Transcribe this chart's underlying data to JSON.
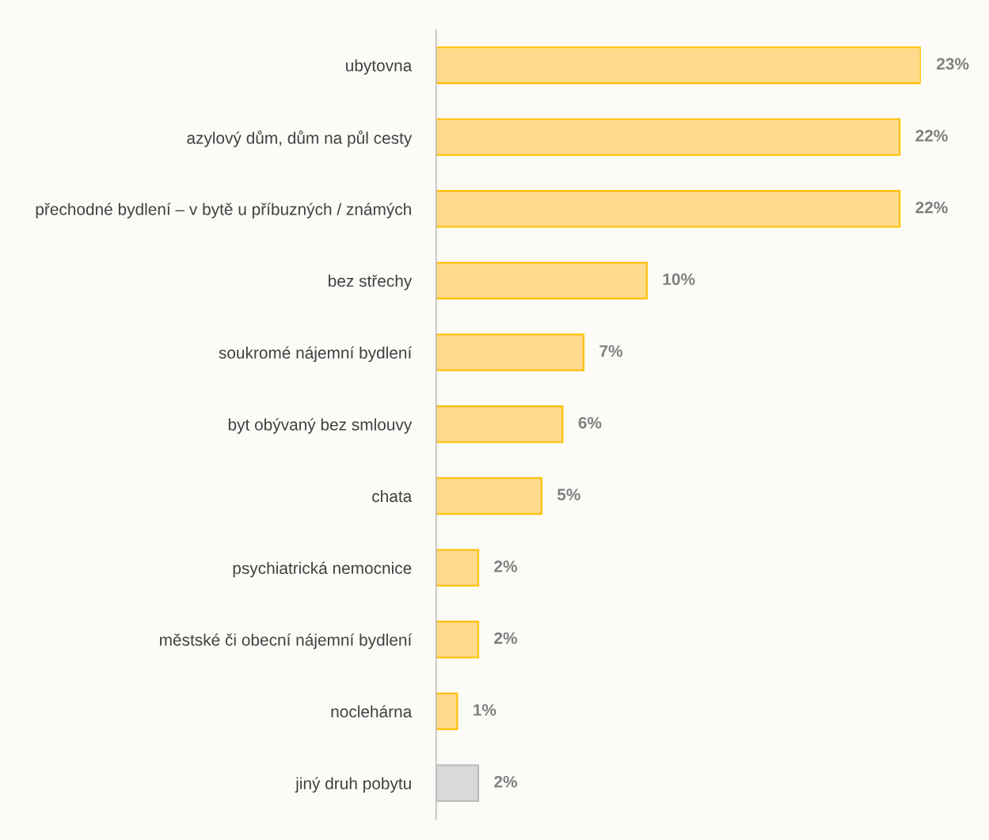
{
  "chart_data": {
    "type": "bar",
    "orientation": "horizontal",
    "categories": [
      "ubytovna",
      "azylový dům, dům na půl cesty",
      "přechodné bydlení – v bytě u příbuzných / známých",
      "bez střechy",
      "soukromé nájemní bydlení",
      "byt obývaný bez smlouvy",
      "chata",
      "psychiatrická nemocnice",
      "městské či obecní nájemní bydlení",
      "noclehárna",
      "jiný druh pobytu"
    ],
    "values": [
      23,
      22,
      22,
      10,
      7,
      6,
      5,
      2,
      2,
      1,
      2
    ],
    "colors": [
      "#ffd98c",
      "#ffd98c",
      "#ffd98c",
      "#ffd98c",
      "#ffd98c",
      "#ffd98c",
      "#ffd98c",
      "#ffd98c",
      "#ffd98c",
      "#ffd98c",
      "#d9d9d9"
    ],
    "value_labels": [
      "23%",
      "22%",
      "22%",
      "10%",
      "7%",
      "6%",
      "5%",
      "2%",
      "2%",
      "1%",
      "2%"
    ],
    "grid": false,
    "legend": false
  }
}
